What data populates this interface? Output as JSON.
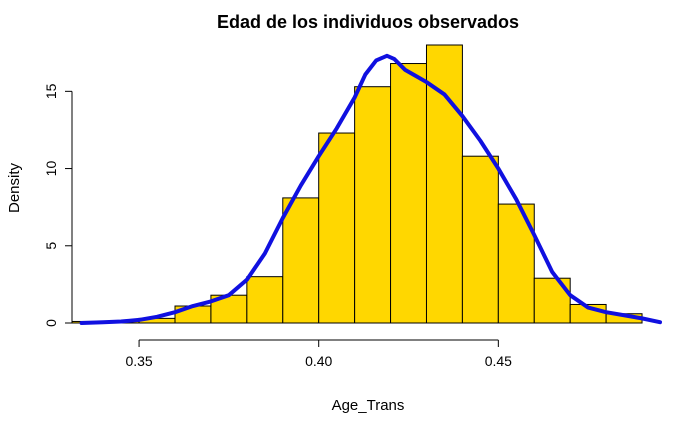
{
  "chart_data": {
    "type": "bar",
    "title": "Edad de los individuos observados",
    "xlabel": "Age_Trans",
    "ylabel": "Density",
    "xlim": [
      0.333,
      0.495
    ],
    "ylim": [
      0,
      18
    ],
    "x_ticks": [
      0.35,
      0.4,
      0.45
    ],
    "x_tick_labels": [
      "0.35",
      "0.40",
      "0.45"
    ],
    "y_ticks": [
      0,
      5,
      10,
      15
    ],
    "y_tick_labels": [
      "0",
      "5",
      "10",
      "15"
    ],
    "bin_edges": [
      0.33,
      0.34,
      0.35,
      0.36,
      0.37,
      0.38,
      0.39,
      0.4,
      0.41,
      0.42,
      0.43,
      0.44,
      0.45,
      0.46,
      0.47,
      0.48,
      0.49
    ],
    "values": [
      0.1,
      0.1,
      0.3,
      1.1,
      1.8,
      3.0,
      8.1,
      12.3,
      15.3,
      16.8,
      18.0,
      10.8,
      7.7,
      2.9,
      1.2,
      0.6
    ],
    "bar_color": "#FFD700",
    "density_color": "#1010E0",
    "density_curve": {
      "x": [
        0.334,
        0.34,
        0.345,
        0.35,
        0.355,
        0.36,
        0.365,
        0.37,
        0.375,
        0.38,
        0.385,
        0.39,
        0.395,
        0.4,
        0.405,
        0.41,
        0.413,
        0.416,
        0.419,
        0.421,
        0.424,
        0.427,
        0.43,
        0.435,
        0.44,
        0.445,
        0.45,
        0.455,
        0.46,
        0.465,
        0.47,
        0.475,
        0.48,
        0.485,
        0.49,
        0.495
      ],
      "y": [
        0.0,
        0.05,
        0.1,
        0.2,
        0.4,
        0.7,
        1.1,
        1.4,
        1.8,
        2.8,
        4.5,
        6.8,
        8.9,
        10.8,
        12.6,
        14.6,
        16.1,
        17.0,
        17.3,
        17.1,
        16.4,
        16.0,
        15.6,
        14.8,
        13.4,
        11.8,
        10.0,
        8.0,
        5.7,
        3.3,
        1.8,
        1.0,
        0.7,
        0.5,
        0.3,
        0.05
      ]
    },
    "grid": false,
    "legend": "none"
  }
}
